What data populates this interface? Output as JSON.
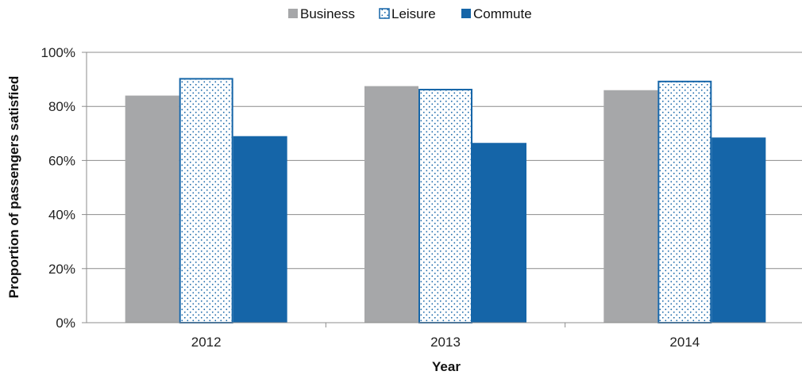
{
  "chart_data": {
    "type": "bar",
    "categories": [
      "2012",
      "2013",
      "2014"
    ],
    "series": [
      {
        "name": "Business",
        "values": [
          84,
          87.5,
          86
        ],
        "color": "#a6a7a9",
        "pattern": "solid"
      },
      {
        "name": "Leisure",
        "values": [
          90.5,
          86.5,
          89.5
        ],
        "color": "#1565a8",
        "pattern": "dotted"
      },
      {
        "name": "Commute",
        "values": [
          69,
          66.5,
          68.5
        ],
        "color": "#1565a8",
        "pattern": "solid"
      }
    ],
    "title": "",
    "xlabel": "Year",
    "ylabel": "Proportion of passengers satisfied",
    "ylim": [
      0,
      100
    ],
    "yticks": [
      "0%",
      "20%",
      "40%",
      "60%",
      "80%",
      "100%"
    ],
    "grid": true,
    "legend_position": "top-center"
  }
}
